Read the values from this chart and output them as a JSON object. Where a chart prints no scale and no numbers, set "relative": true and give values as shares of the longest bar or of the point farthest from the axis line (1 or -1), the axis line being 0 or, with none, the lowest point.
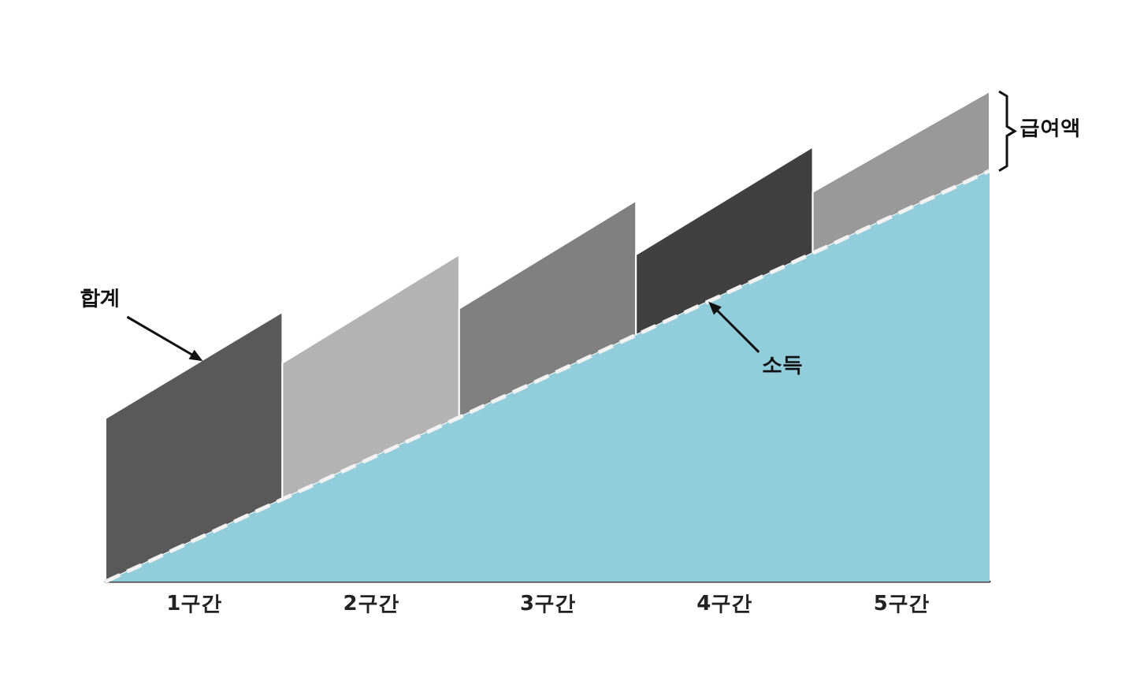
{
  "chart_data": {
    "type": "area",
    "relative": true,
    "grid": false,
    "tick_labels": "x",
    "marker": "none",
    "xlim": [
      0,
      5
    ],
    "xticks": [
      {
        "value": 0.5,
        "label": "1구간"
      },
      {
        "value": 1.5,
        "label": "2구간"
      },
      {
        "value": 2.5,
        "label": "3구간"
      },
      {
        "value": 3.5,
        "label": "4구간"
      },
      {
        "value": 4.5,
        "label": "5구간"
      }
    ],
    "series": [
      {
        "type": "area",
        "color": "#92cddc",
        "line_style": "dashed",
        "x": [
          0,
          1,
          2,
          3,
          4,
          5
        ],
        "values": [
          0,
          0.168,
          0.335,
          0.503,
          0.67,
          0.838
        ]
      },
      {
        "color": "#595959",
        "x": [
          0,
          1
        ],
        "values": [
          0.333,
          0.55
        ]
      },
      {
        "color": "#b3b3b3",
        "x": [
          1,
          2
        ],
        "values": [
          0.446,
          0.667
        ]
      },
      {
        "color": "#808080",
        "x": [
          2,
          3
        ],
        "values": [
          0.557,
          0.777
        ]
      },
      {
        "color": "#404040",
        "x": [
          3,
          4
        ],
        "values": [
          0.667,
          0.887
        ]
      },
      {
        "color": "#999999",
        "x": [
          4,
          5
        ],
        "values": [
          0.795,
          1
        ]
      }
    ],
    "annotations": [
      {
        "text": "합계",
        "x": 0.55,
        "y": 0.45
      },
      {
        "text": "소득",
        "x": 3.41,
        "y": 0.571
      },
      {
        "text": "급여액",
        "x": 5,
        "y": 0.92
      }
    ]
  }
}
